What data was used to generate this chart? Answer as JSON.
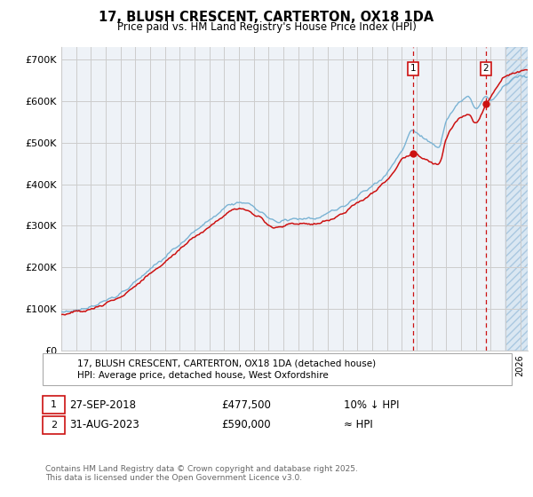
{
  "title": "17, BLUSH CRESCENT, CARTERTON, OX18 1DA",
  "subtitle": "Price paid vs. HM Land Registry's House Price Index (HPI)",
  "ylabel_ticks": [
    "£0",
    "£100K",
    "£200K",
    "£300K",
    "£400K",
    "£500K",
    "£600K",
    "£700K"
  ],
  "ytick_values": [
    0,
    100000,
    200000,
    300000,
    400000,
    500000,
    600000,
    700000
  ],
  "ylim": [
    0,
    730000
  ],
  "xlim_start": 1995,
  "xlim_end": 2026.5,
  "hpi_color": "#7ab3d4",
  "price_color": "#cc1111",
  "bg_color": "#eef2f7",
  "grid_color": "#cccccc",
  "marker1_date": 2018.75,
  "marker2_date": 2023.67,
  "marker1_date_str": "27-SEP-2018",
  "marker1_price": "£477,500",
  "marker1_note": "10% ↓ HPI",
  "marker2_date_str": "31-AUG-2023",
  "marker2_price": "£590,000",
  "marker2_note": "≈ HPI",
  "legend1": "17, BLUSH CRESCENT, CARTERTON, OX18 1DA (detached house)",
  "legend2": "HPI: Average price, detached house, West Oxfordshire",
  "footnote": "Contains HM Land Registry data © Crown copyright and database right 2025.\nThis data is licensed under the Open Government Licence v3.0.",
  "future_shade_start": 2025.0
}
